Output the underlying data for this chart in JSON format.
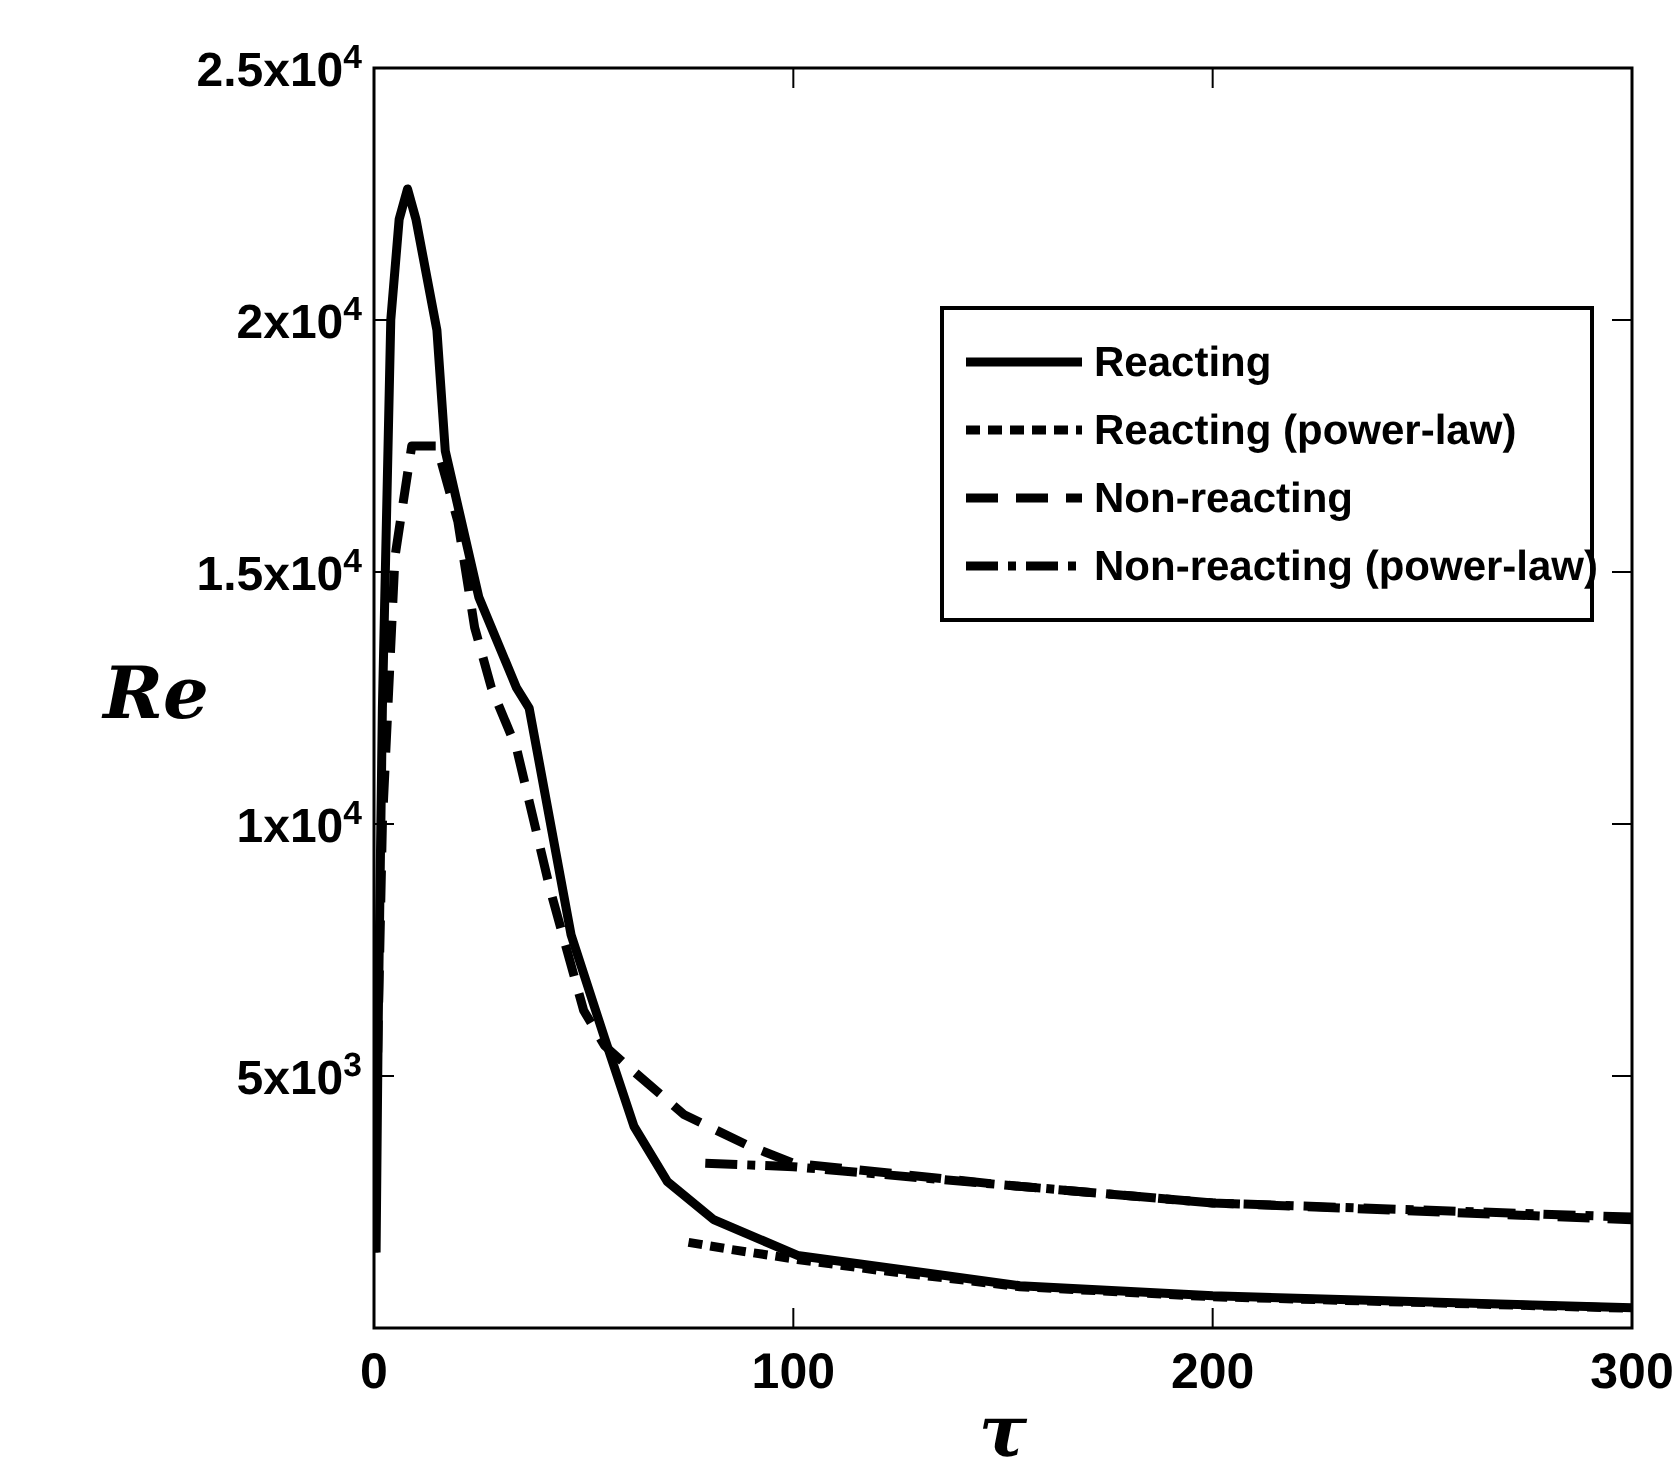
{
  "chart_data": {
    "type": "line",
    "xlabel": "τ",
    "ylabel": "Re",
    "xlim": [
      0,
      300
    ],
    "xticks": [
      0,
      100,
      200,
      300
    ],
    "ylim": [
      0,
      25000
    ],
    "yticks": [
      {
        "value": 5000,
        "label": "5x10$^{3}$"
      },
      {
        "value": 10000,
        "label": "1x10$^{4}$"
      },
      {
        "value": 15000,
        "label": "1.5x10$^{4}$"
      },
      {
        "value": 20000,
        "label": "2x10$^{4}$"
      },
      {
        "value": 25000,
        "label": "2.5x10$^{4}$"
      }
    ],
    "grid": false,
    "legend": "top right",
    "series": [
      {
        "name": "Reacting",
        "color": "#000000",
        "line_style": "solid",
        "x": [
          0.5,
          1,
          2,
          4,
          6,
          8,
          10,
          15,
          17,
          25,
          34,
          37,
          47,
          55,
          62,
          70,
          81,
          101,
          154,
          200,
          300
        ],
        "values": [
          1500,
          6000,
          12300,
          20000,
          22000,
          22600,
          22000,
          19800,
          17400,
          14500,
          12700,
          12300,
          7800,
          5750,
          4000,
          2900,
          2150,
          1440,
          840,
          640,
          400
        ]
      },
      {
        "name": "Reacting (power-law)",
        "color": "#000000",
        "line_style": "dotted",
        "x": [
          75,
          85,
          101,
          120,
          154,
          200,
          300
        ],
        "values": [
          1700,
          1560,
          1360,
          1150,
          820,
          620,
          390
        ]
      },
      {
        "name": "Non-reacting",
        "color": "#000000",
        "line_style": "dashed",
        "x": [
          0,
          1,
          2,
          5,
          9,
          15,
          20,
          24,
          28,
          34,
          42,
          50,
          55,
          60,
          74,
          89,
          100,
          150,
          200,
          300
        ],
        "values": [
          1500,
          6000,
          10000,
          15300,
          17500,
          17500,
          16000,
          13900,
          12700,
          11500,
          8700,
          6300,
          5600,
          5230,
          4230,
          3630,
          3270,
          2840,
          2480,
          2150
        ]
      },
      {
        "name": "Non-reacting (power-law)",
        "color": "#000000",
        "line_style": "dashdot",
        "x": [
          79,
          100,
          150,
          200,
          300
        ],
        "values": [
          3270,
          3200,
          2840,
          2480,
          2200
        ]
      }
    ]
  }
}
